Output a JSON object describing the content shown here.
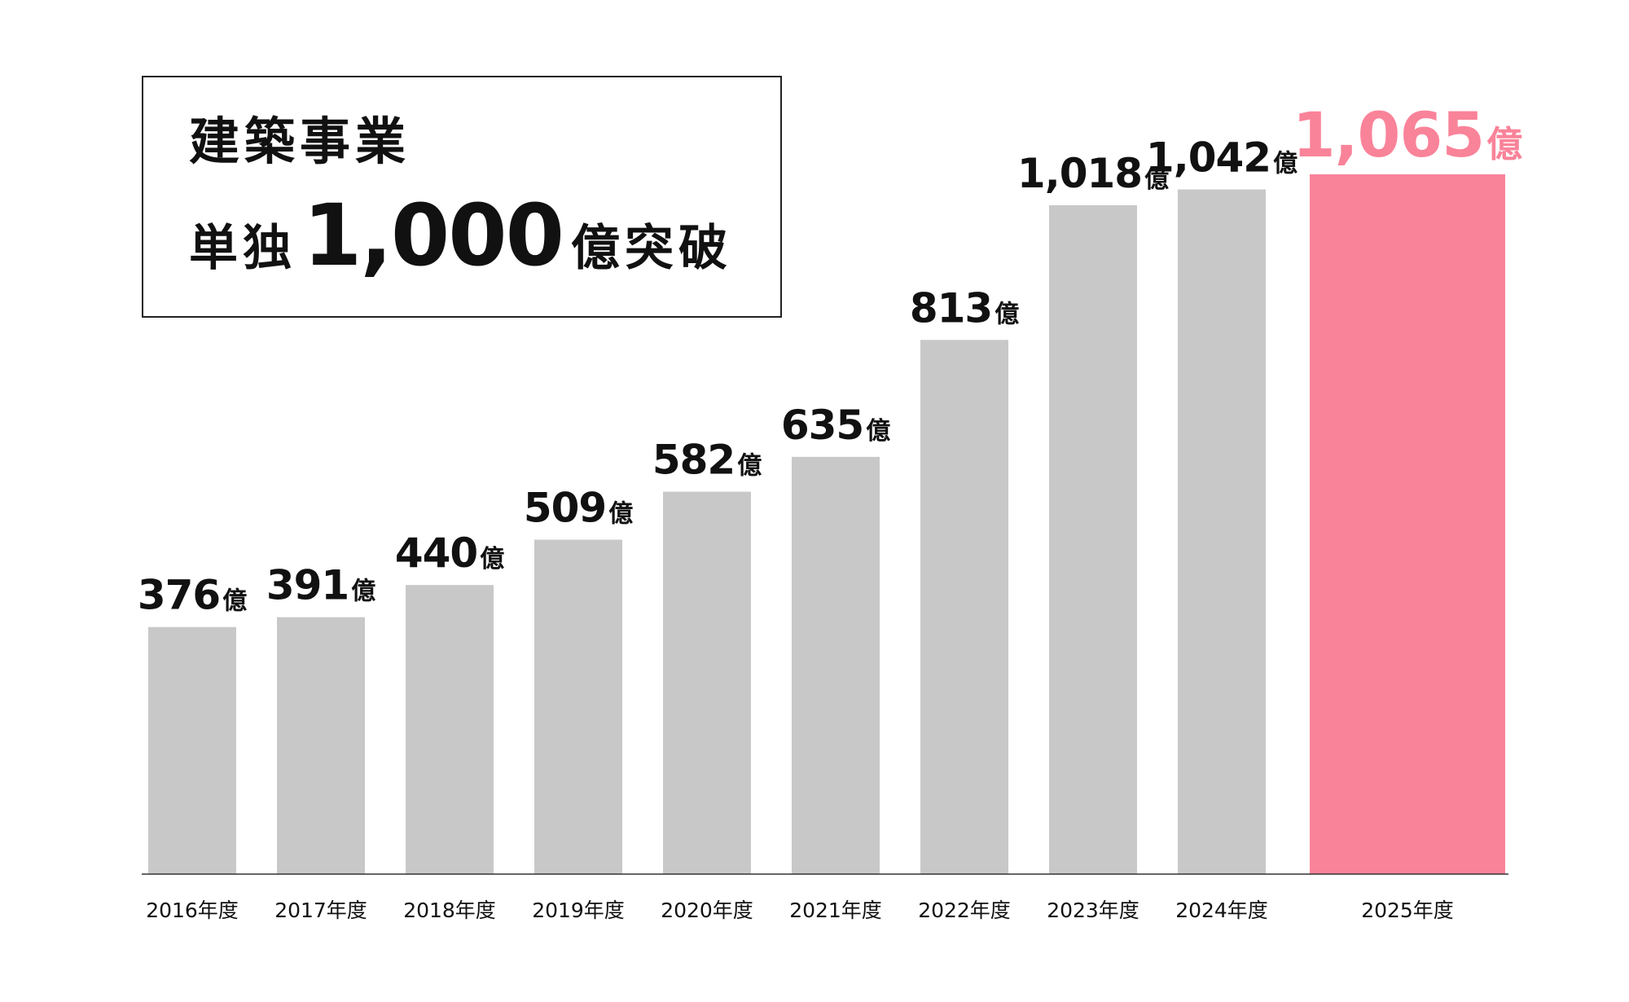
{
  "title": {
    "line1": "建築事業",
    "line2_prefix": "単独",
    "line2_number": "1,000",
    "line2_suffix": "億突破"
  },
  "colors": {
    "bar": "#c8c8c8",
    "highlight": "#f98399",
    "text": "#111111",
    "axis": "#333333"
  },
  "chart_data": {
    "type": "bar",
    "categories": [
      "2016年度",
      "2017年度",
      "2018年度",
      "2019年度",
      "2020年度",
      "2021年度",
      "2022年度",
      "2023年度",
      "2024年度",
      "2025年度"
    ],
    "values": [
      376,
      391,
      440,
      509,
      582,
      635,
      813,
      1018,
      1042,
      1065
    ],
    "value_labels": [
      "376",
      "391",
      "440",
      "509",
      "582",
      "635",
      "813",
      "1,018",
      "1,042",
      "1,065"
    ],
    "value_unit": "億",
    "highlight_index": 9,
    "ylim": [
      0,
      1065
    ],
    "grid": false,
    "legend": "none"
  }
}
